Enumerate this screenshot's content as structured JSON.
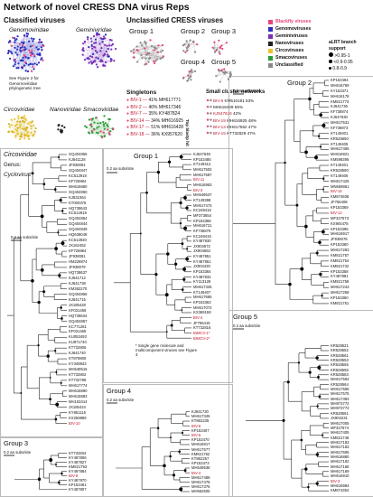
{
  "title": "Network of novel CRESS DNA virus Reps",
  "classified_label": "Classified viruses",
  "unclassified_label": "Unclassified CRESS viruses",
  "families": {
    "genomoviridae": "Genomoviridae",
    "geminiviridae": "Geminiviridae",
    "circoviridae": "Circoviridae",
    "nanoviridae": "Nanoviridae",
    "smacoviridae": "Smacoviridae"
  },
  "genomo_note": "See Figure 2 for Genomoviridae phylogenetic tree",
  "net_groups": [
    "Group 1",
    "Group 2",
    "Group 3",
    "Group 4",
    "Group 5"
  ],
  "legend": [
    {
      "label": "Blackfly viruses",
      "color": "#e8447a"
    },
    {
      "label": "Genomoviruses",
      "color": "#2b2fbf"
    },
    {
      "label": "Geminiviruses",
      "color": "#7a2fb5"
    },
    {
      "label": "Nanoviruses",
      "color": "#1e1e1e"
    },
    {
      "label": "Circoviruses",
      "color": "#e8c330"
    },
    {
      "label": "Smacoviruses",
      "color": "#2b9c3a"
    },
    {
      "label": "Unclassified",
      "color": "#8a8a8a"
    }
  ],
  "support": {
    "title": "aLRT branch support",
    "levels": [
      ">0.95-1",
      "<0.9-0.95",
      "0.8-0.9"
    ]
  },
  "singletons": {
    "title": "Singletons",
    "side": "Top blastp hit",
    "rows": [
      {
        "id": "BIV-1",
        "pct": "41%",
        "acc": "MH617771"
      },
      {
        "id": "BIV-2",
        "pct": "40%",
        "acc": "MH617346"
      },
      {
        "id": "BIV-7",
        "pct": "35%",
        "acc": "KY487824"
      },
      {
        "id": "BIV-14",
        "pct": "34%",
        "acc": "MH616925"
      },
      {
        "id": "BIV-17",
        "pct": "51%",
        "acc": "MH616428"
      },
      {
        "id": "BIV-18",
        "pct": "36%",
        "acc": "KX957620"
      }
    ]
  },
  "small_clusters": {
    "title": "Small cluster networks",
    "rows": [
      {
        "id": "BIV-6",
        "acc": "KM510191",
        "pct": "53%"
      },
      {
        "id": "",
        "acc": "MH616429",
        "pct": "55%"
      },
      {
        "id": "KJ547626",
        "acc": "",
        "pct": "42%"
      },
      {
        "id": "BIV-19",
        "acc": "MH616925",
        "pct": "48%"
      },
      {
        "id": "BIV-13",
        "acc": "MH617562",
        "pct": "47%"
      },
      {
        "id": "BIV-15",
        "acc": "KT732829",
        "pct": "47%"
      }
    ]
  },
  "circo": {
    "label": "Circoviridae",
    "genus_label": "Genus:",
    "genus": "Cyclovirus",
    "scale": "0.2 aa subs/site",
    "leaves": [
      "GQ404855",
      "KJ641128",
      "JF938081",
      "GQ404847",
      "KC512918",
      "KF726984",
      "MH616680",
      "GQ404850",
      "KJ831064",
      "KT000376",
      "HQ738643",
      "KC512919",
      "GQ404854",
      "GQ404844",
      "GQ404849",
      "HQ638049",
      "KC512920",
      "JX162452",
      "KF726984",
      "JF938081",
      "HM228874",
      "JF938079",
      "HQ738637",
      "KJ641712",
      "KJ641738",
      "KM382270",
      "GQ404856",
      "KJ641715",
      "JX185428",
      "KF031466",
      "HQ738634",
      "GQ404857",
      "KC771281",
      "KF031465",
      "KU053493",
      "KU871740",
      "KT732806",
      "KJ641740",
      "KT878806",
      "KY348843",
      "MH549515",
      "KT732802",
      "KT732788",
      "MH617774",
      "MH616890",
      "MH616883",
      "MH153414",
      "JX185424",
      "KY851116",
      "KX259889",
      "BIV-10"
    ]
  },
  "group1": {
    "label": "Group 1",
    "scale": "0.2 aa subs/site",
    "note": "* Single gene molecule and multicomponent viruses see Figure 3",
    "leaves": [
      "KJ547648",
      "KP153485",
      "KT149412",
      "MH617502",
      "MH617587",
      "BIV-11",
      "MH616953",
      "BIV-3",
      "MH549537",
      "KT149398",
      "MH617473",
      "KC248416",
      "MF373654",
      "KP153368",
      "MH616721",
      "KF738875",
      "KC248416",
      "KY487930",
      "JX904572",
      "JX904563",
      "KY487851",
      "KY487851",
      "JX904420",
      "KP153364",
      "KY487832",
      "KY113128",
      "MH617325",
      "KT149407",
      "MH617665",
      "KP153363",
      "MH617072",
      "KX369159",
      "BIV-4",
      "JF755415",
      "KT732816",
      "BIMCV-1*",
      "BIMCV-2*"
    ]
  },
  "group2": {
    "label": "Group 2",
    "scale": "0.2 aa subs/site",
    "leaves": [
      "KP153494",
      "MH616769",
      "KY153371",
      "MH616178",
      "KM821773",
      "KJ641736",
      "KF738874",
      "KJ547630",
      "MH617531",
      "KF738873",
      "KT149401",
      "KR528650",
      "KT149405",
      "MH617465",
      "MH616921",
      "KM598395",
      "KT149401",
      "KR528580",
      "KT149406",
      "MH617425",
      "MN669861",
      "BIV-16",
      "KM874936",
      "JF755408",
      "KP153369",
      "BIV-12",
      "MF327573",
      "KX904478",
      "KP153395",
      "MH616917",
      "JF938078",
      "KP153360",
      "MH617283",
      "KM821757",
      "KM821754",
      "KM821732",
      "KP153358",
      "KY487881",
      "KM821759",
      "MH617243",
      "MH617258",
      "KP153360",
      "KM821751"
    ]
  },
  "group3": {
    "label": "Group 3",
    "scale": "0.2 aa subs/site",
    "leaves": [
      "KT732834",
      "KY487806",
      "KY487827",
      "KM821753",
      "KY487884",
      "BIV-8",
      "KY487870",
      "KP153491",
      "KY487807"
    ]
  },
  "group4": {
    "label": "Group 4",
    "scale": "0.2 aa subs/site",
    "leaves": [
      "KJ641730",
      "MH617345",
      "KT862235",
      "BIV-6",
      "KP153407",
      "BIV-5",
      "KP153470",
      "MH616917",
      "MH617577",
      "KM821762",
      "KT862257",
      "KP153473",
      "MH549536",
      "BIV-4",
      "MH617488",
      "MH617478",
      "MH617376",
      "MH552505"
    ]
  },
  "group5": {
    "label": "Group 5",
    "scale": "0.2 aa subs/site",
    "leaves": [
      "KR528521",
      "KR528562",
      "KR528561",
      "KR528553",
      "KR528565",
      "KR528555",
      "KR528583",
      "MH617594",
      "KR528564",
      "MH617565",
      "MH617575",
      "MH617383",
      "MH973772",
      "MH973772",
      "KR528561",
      "JX904231",
      "MH617005",
      "MF327574",
      "MH617405",
      "KM821748",
      "MH617183",
      "MH617183",
      "MH617595",
      "MH616880",
      "MH617182",
      "MH617168",
      "MH617169",
      "MH616910",
      "BIV-3",
      "MH616984",
      "KM874354"
    ]
  }
}
